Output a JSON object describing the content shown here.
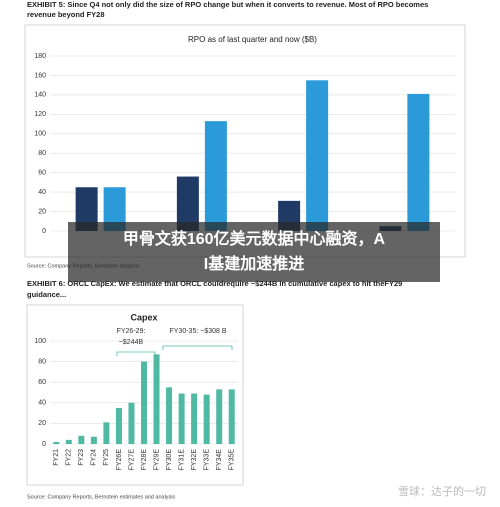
{
  "exhibit5": {
    "lines": [
      "EXHIBIT 5: Since Q4 not only did the size of RPO change but when it converts to revenue. Most of RPO becomes",
      "revenue beyond FY28"
    ],
    "source": "Source: Company Reports, Bernstein analysis"
  },
  "exhibit6": {
    "lines": [
      "EXHIBIT 6: ORCL CapEx: We estimate that ORCL couldrequire ~$244B in cumulative capex to hit theFY29",
      "guidance..."
    ],
    "source": "Source: Company Reports, Bernstein estimates and analysis"
  },
  "overlay": {
    "lines": [
      "甲骨文获160亿美元数据中心融资，A",
      "I基建加速推进"
    ]
  },
  "watermark": "雪球：达子的一切",
  "chart_data": [
    {
      "type": "bar",
      "title": "RPO as of last quarter and now ($B)",
      "categories": [
        null,
        null,
        null,
        null
      ],
      "series": [
        {
          "color": "#1f3a64",
          "values": [
            45,
            56,
            31,
            5
          ]
        },
        {
          "color": "#2a9ad8",
          "values": [
            45,
            113,
            155,
            141
          ]
        }
      ],
      "ylim": [
        0,
        180
      ],
      "yticks": [
        0,
        20,
        40,
        60,
        80,
        100,
        120,
        140,
        160,
        180
      ],
      "grid": true
    },
    {
      "type": "bar",
      "title": "Capex",
      "categories": [
        "FY21",
        "FY22",
        "FY23",
        "FY24",
        "FY25",
        "FY26E",
        "FY27E",
        "FY28E",
        "FY29E",
        "FY30E",
        "FY31E",
        "FY32E",
        "FY33E",
        "FY34E",
        "FY35E"
      ],
      "series": [
        {
          "color": "#4fb9a3",
          "values": [
            2,
            4,
            8,
            7,
            21,
            35,
            40,
            80,
            87,
            55,
            49,
            49,
            48,
            53,
            53
          ]
        }
      ],
      "ylim": [
        0,
        100
      ],
      "yticks": [
        0,
        20,
        40,
        60,
        80,
        100
      ],
      "grid": true,
      "annotations": [
        [
          "FY26-29:",
          "~$244B"
        ],
        [
          "FY30-35: ~$308 B"
        ]
      ]
    }
  ]
}
